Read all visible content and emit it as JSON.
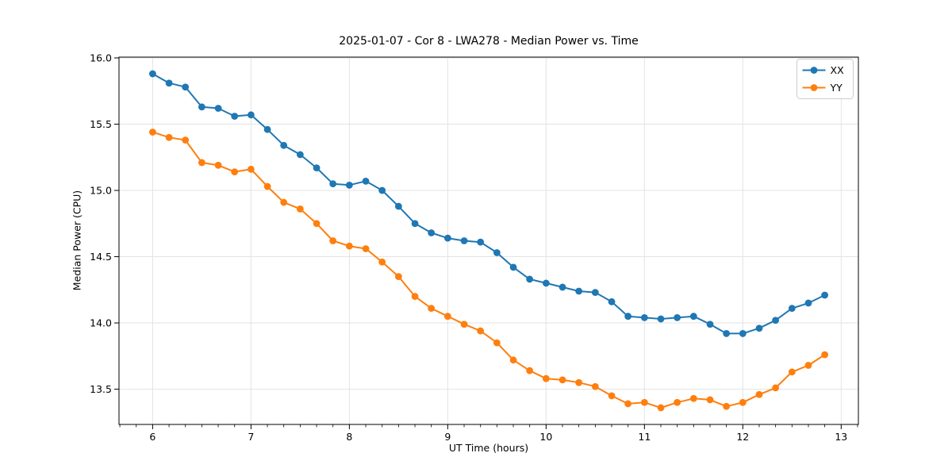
{
  "figure": {
    "background": "#ffffff",
    "text_color": "#000000",
    "grid_color": "#e3e3e3",
    "spine_color": "#000000",
    "legend_border_color": "#cccccc"
  },
  "chart_data": {
    "type": "line",
    "title": "2025-01-07 - Cor 8 - LWA278 - Median Power vs. Time",
    "xlabel": "UT Time (hours)",
    "ylabel": "Median Power (CPU)",
    "xlim": [
      5.658,
      13.175
    ],
    "ylim": [
      13.234,
      16.006
    ],
    "xticks": [
      6,
      7,
      8,
      9,
      10,
      11,
      12,
      13
    ],
    "yticks": [
      13.5,
      14.0,
      14.5,
      15.0,
      15.5,
      16.0
    ],
    "x_minor_divisions": 6,
    "grid": true,
    "legend_position": "upper right",
    "x": [
      6.0,
      6.167,
      6.333,
      6.5,
      6.667,
      6.833,
      7.0,
      7.167,
      7.333,
      7.5,
      7.667,
      7.833,
      8.0,
      8.167,
      8.333,
      8.5,
      8.667,
      8.833,
      9.0,
      9.167,
      9.333,
      9.5,
      9.667,
      9.833,
      10.0,
      10.167,
      10.333,
      10.5,
      10.667,
      10.833,
      11.0,
      11.167,
      11.333,
      11.5,
      11.667,
      11.833,
      12.0,
      12.167,
      12.333,
      12.5,
      12.667,
      12.833
    ],
    "series": [
      {
        "name": "XX",
        "color": "#1f77b4",
        "values": [
          15.88,
          15.81,
          15.78,
          15.63,
          15.62,
          15.56,
          15.57,
          15.46,
          15.34,
          15.27,
          15.17,
          15.05,
          15.04,
          15.07,
          15.0,
          14.88,
          14.75,
          14.68,
          14.64,
          14.62,
          14.61,
          14.53,
          14.42,
          14.33,
          14.3,
          14.27,
          14.24,
          14.23,
          14.16,
          14.05,
          14.04,
          14.03,
          14.04,
          14.05,
          13.99,
          13.92,
          13.92,
          13.96,
          14.02,
          14.11,
          14.15,
          14.21
        ]
      },
      {
        "name": "YY",
        "color": "#ff7f0e",
        "values": [
          15.44,
          15.4,
          15.38,
          15.21,
          15.19,
          15.14,
          15.16,
          15.03,
          14.91,
          14.86,
          14.75,
          14.62,
          14.58,
          14.56,
          14.46,
          14.35,
          14.2,
          14.11,
          14.05,
          13.99,
          13.94,
          13.85,
          13.72,
          13.64,
          13.58,
          13.57,
          13.55,
          13.52,
          13.45,
          13.39,
          13.4,
          13.36,
          13.4,
          13.43,
          13.42,
          13.37,
          13.4,
          13.46,
          13.51,
          13.63,
          13.68,
          13.76
        ]
      }
    ]
  }
}
